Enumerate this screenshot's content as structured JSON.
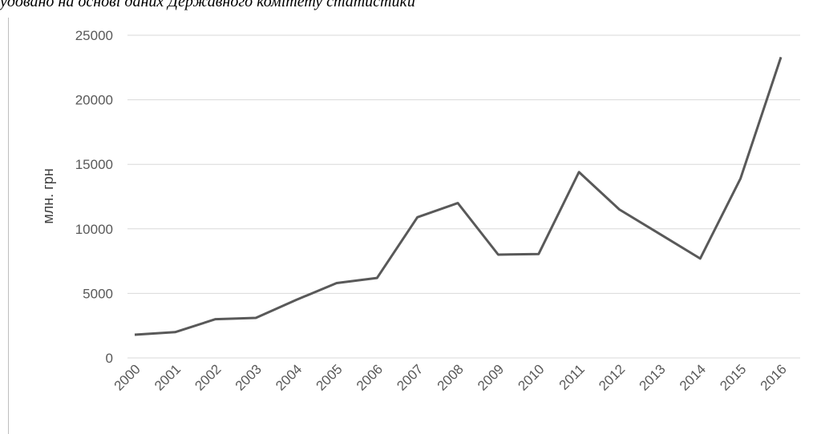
{
  "caption": "удовано на основі даних Державного комітету статистики",
  "chart_data": {
    "type": "line",
    "title": "",
    "xlabel": "",
    "ylabel": "млн. грн",
    "x": [
      "2000",
      "2001",
      "2002",
      "2003",
      "2004",
      "2005",
      "2006",
      "2007",
      "2008",
      "2009",
      "2010",
      "2011",
      "2012",
      "2013",
      "2014",
      "2015",
      "2016"
    ],
    "series": [
      {
        "values": [
          1800,
          2000,
          3000,
          3100,
          4500,
          5800,
          6200,
          10900,
          12000,
          8000,
          8050,
          14400,
          11500,
          9600,
          7700,
          13900,
          23300
        ]
      }
    ],
    "ylim": [
      0,
      25000
    ],
    "yticks": [
      0,
      5000,
      10000,
      15000,
      20000,
      25000
    ],
    "grid": true,
    "legend": "none",
    "line_color": "#595959",
    "grid_color": "#d9d9d9"
  }
}
